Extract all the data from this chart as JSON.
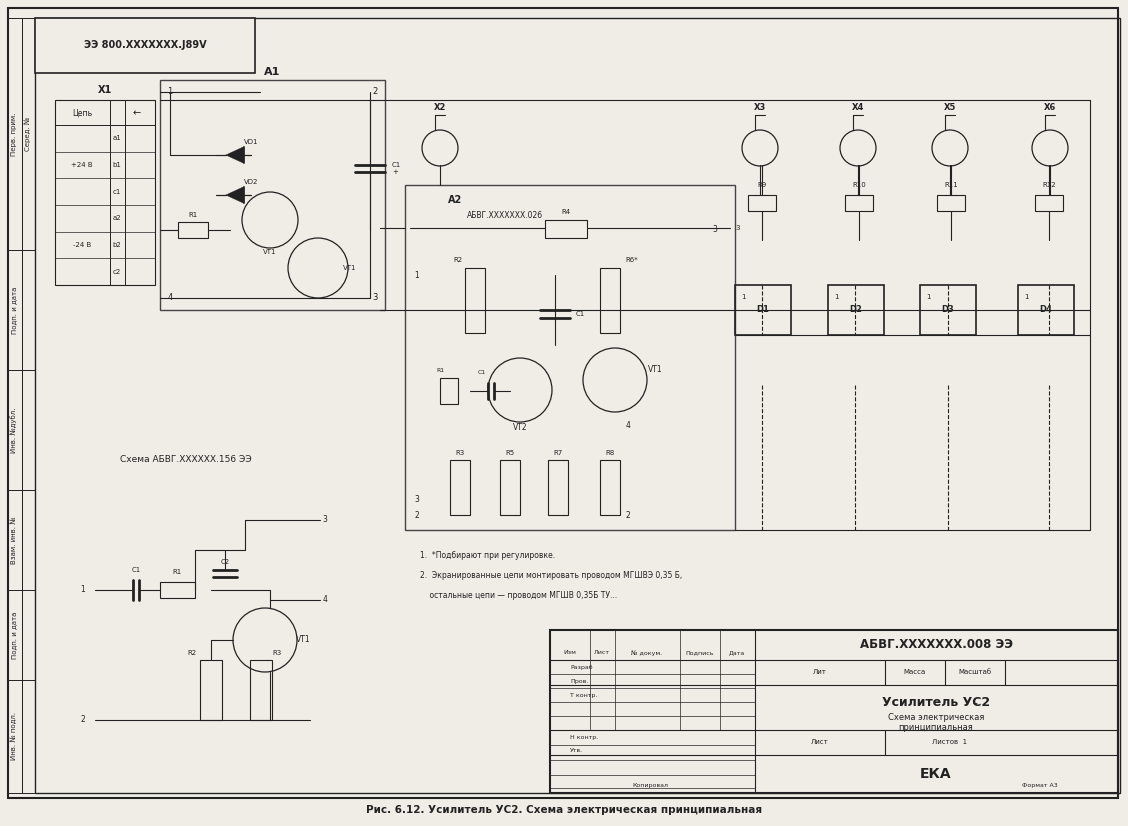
{
  "title": "Рис. 6.12. Усилитель УС2. Схема электрическая принципиальная",
  "stamp_title": "АБВГ.XXXXXXX.008 ЭЭ",
  "stamp_doc_title": "Усилитель УС2",
  "stamp_eka": "ЕКА",
  "stamp_format": "Формат А3",
  "stamp_copy": "Копировал",
  "stamp_listov": "Листов  1",
  "stamp_list": "Лист",
  "stamp_mass": "Масса",
  "stamp_masshtab": "Масштаб",
  "stamp_lit": "Лит",
  "stamp_izm": "Изм",
  "stamp_ndok": "№ докум.",
  "stamp_podpis": "Подпись",
  "stamp_data": "Дата",
  "stamp_razrab": "Разраб",
  "stamp_prov": "Пров.",
  "stamp_tkont": "Т контр.",
  "stamp_nkont": "Н контр.",
  "stamp_utv": "Утв.",
  "stamp_dash": "–",
  "top_stamp": "ЭЭ 800.XXXXXXX.J89V",
  "a1_label": "A1",
  "a2_label": "А2",
  "a2_sublabel": "АБВГ.XXXXXXX.026",
  "x1_label": "X1",
  "x2_label": "X2",
  "x3_label": "X3",
  "x4_label": "X4",
  "x5_label": "X5",
  "x6_label": "X6",
  "vd1": "VD1",
  "vd2": "VD2",
  "vt1": "VT1",
  "vt2": "VT2",
  "c1": "C1",
  "c2": "C2",
  "r1": "R1",
  "r2": "R2",
  "r3": "R3",
  "r4": "R4",
  "r5": "R5",
  "r6": "R6*",
  "r7": "R7",
  "r8": "R8",
  "r9": "R9",
  "r10": "R10",
  "r11": "R11",
  "r12": "R12",
  "d1": "D1",
  "d2": "D2",
  "d3": "D3",
  "d4": "D4",
  "sub_title": "Схема АБВГ.XXXXXX.156 ЭЭ",
  "note1": "1.  *Подбирают при регулировке.",
  "note2": "2.  Экранированные цепи монтировать проводом МГШВЭ 0,35 Б,",
  "note3": "    остальные цепи — проводом МГШВ 0,35Б ТУ...",
  "x1_cep": "Цепь",
  "x1_arr": "←",
  "x1_p24": "+24 В",
  "x1_m24": "-24 В",
  "x1_a1": "а1",
  "x1_b1": "b1",
  "x1_c1": "c1",
  "x1_a2": "а2",
  "x1_b2": "b2",
  "x1_c2": "c2",
  "left_perv": "Перв. прим.",
  "left_podp1": "Подп. и дата",
  "left_inv_dubl": "Инв. №дубл.",
  "left_vzam": "Взам. инв. №",
  "left_podp2": "Подп. и дата",
  "left_inv_podl": "Инв. № подл.",
  "left_ser": "Серед. №",
  "bg_color": "#f0ede6",
  "line_color": "#222222"
}
